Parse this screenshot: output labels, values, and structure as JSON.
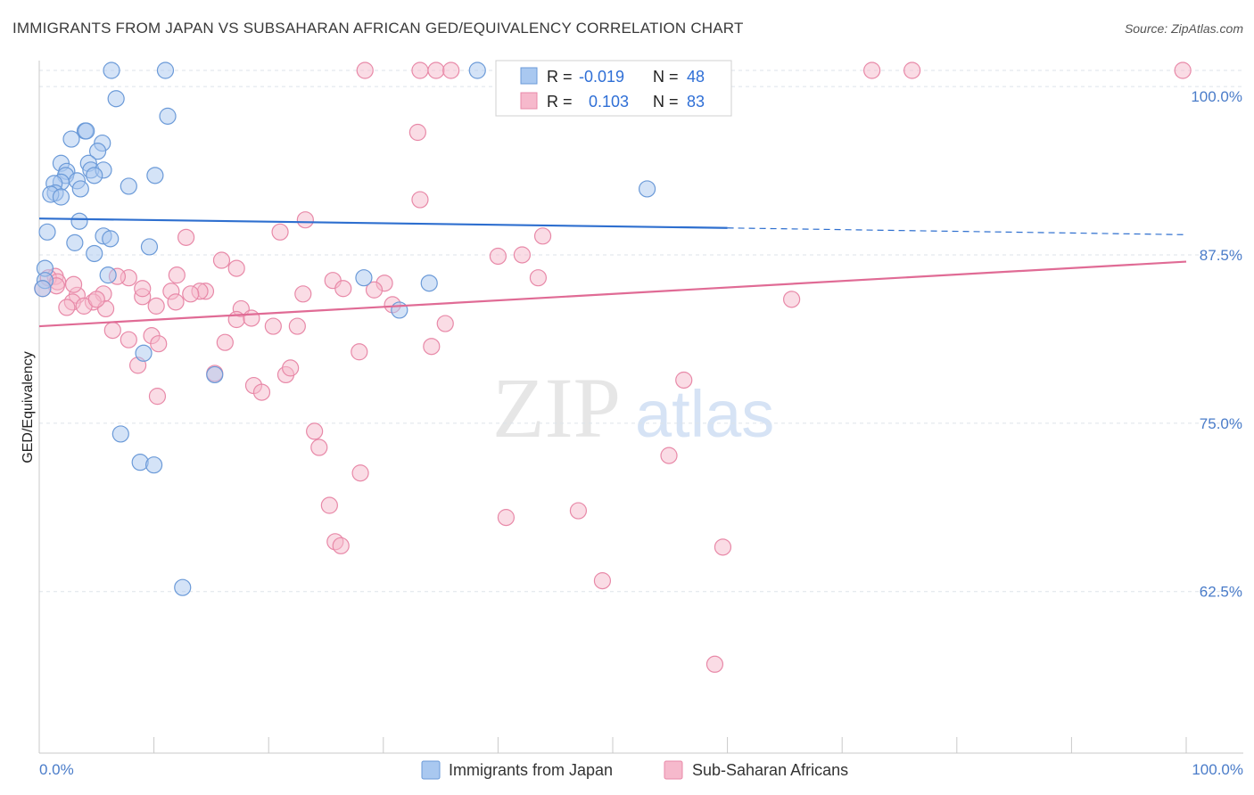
{
  "title": "IMMIGRANTS FROM JAPAN VS SUBSAHARAN AFRICAN GED/EQUIVALENCY CORRELATION CHART",
  "source": "Source: ZipAtlas.com",
  "watermark": {
    "zip": "ZIP",
    "atlas": "atlas"
  },
  "colors": {
    "japan_fill": "#a9c8f0",
    "japan_stroke": "#6b9ad8",
    "japan_line": "#2e6fcf",
    "africa_fill": "#f6b9cc",
    "africa_stroke": "#e889a8",
    "africa_line": "#e06b95",
    "tick_text": "#4a7cc9",
    "grid": "#dde3ea"
  },
  "stats": [
    {
      "r_label": "R =",
      "r_value": "-0.019",
      "n_label": "N =",
      "n_value": "48"
    },
    {
      "r_label": "R =",
      "r_value": "0.103",
      "n_label": "N =",
      "n_value": "83"
    }
  ],
  "chart_data": {
    "type": "scatter",
    "title": "IMMIGRANTS FROM JAPAN VS SUBSAHARAN AFRICAN GED/EQUIVALENCY CORRELATION CHART",
    "xlabel": "",
    "ylabel": "GED/Equivalency",
    "x_tick_labels": [
      "0.0%",
      "100.0%"
    ],
    "y_tick_labels": [
      "100.0%",
      "87.5%",
      "75.0%",
      "62.5%"
    ],
    "xlim": [
      0,
      100
    ],
    "ylim": [
      50.5,
      101.2
    ],
    "y_ticks": [
      100,
      87.5,
      75,
      62.5
    ],
    "grid": true,
    "legend_position": "bottom-center",
    "series": [
      {
        "name": "Immigrants from Japan",
        "r": -0.019,
        "n": 48,
        "trend": {
          "x0": 0,
          "y0": 90.2,
          "x1": 60,
          "y1": 89.5,
          "x_dash_end": 100,
          "y_dash_end": 89.0
        },
        "points": [
          [
            6.3,
            101.2
          ],
          [
            11,
            101.2
          ],
          [
            38.2,
            101.2
          ],
          [
            43,
            101.2
          ],
          [
            6.7,
            99.1
          ],
          [
            11.2,
            97.8
          ],
          [
            4.0,
            96.7
          ],
          [
            4.1,
            96.7
          ],
          [
            2.8,
            96.1
          ],
          [
            5.5,
            95.8
          ],
          [
            5.1,
            95.2
          ],
          [
            1.9,
            94.3
          ],
          [
            4.3,
            94.3
          ],
          [
            4.5,
            93.8
          ],
          [
            5.6,
            93.8
          ],
          [
            2.4,
            93.7
          ],
          [
            2.3,
            93.4
          ],
          [
            4.8,
            93.4
          ],
          [
            10.1,
            93.4
          ],
          [
            3.3,
            93.0
          ],
          [
            1.9,
            92.9
          ],
          [
            1.3,
            92.8
          ],
          [
            7.8,
            92.6
          ],
          [
            3.6,
            92.4
          ],
          [
            1.4,
            92.1
          ],
          [
            1.0,
            92.0
          ],
          [
            1.9,
            91.8
          ],
          [
            53,
            92.4
          ],
          [
            3.5,
            90.0
          ],
          [
            0.7,
            89.2
          ],
          [
            5.6,
            88.9
          ],
          [
            6.2,
            88.7
          ],
          [
            3.1,
            88.4
          ],
          [
            9.6,
            88.1
          ],
          [
            4.8,
            87.6
          ],
          [
            0.5,
            86.5
          ],
          [
            6.0,
            86.0
          ],
          [
            0.5,
            85.6
          ],
          [
            28.3,
            85.8
          ],
          [
            34,
            85.4
          ],
          [
            31.4,
            83.4
          ],
          [
            9.1,
            80.2
          ],
          [
            15.3,
            78.6
          ],
          [
            7.1,
            74.2
          ],
          [
            8.8,
            72.1
          ],
          [
            10.0,
            71.9
          ],
          [
            12.5,
            62.8
          ],
          [
            0.3,
            85.0
          ]
        ]
      },
      {
        "name": "Sub-Saharan Africans",
        "r": 0.103,
        "n": 83,
        "trend": {
          "x0": 0,
          "y0": 82.2,
          "x1": 100,
          "y1": 87.0
        },
        "points": [
          [
            28.4,
            101.2
          ],
          [
            33.2,
            101.2
          ],
          [
            34.6,
            101.2
          ],
          [
            35.9,
            101.2
          ],
          [
            72.6,
            101.2
          ],
          [
            76.1,
            101.2
          ],
          [
            99.7,
            101.2
          ],
          [
            33,
            96.6
          ],
          [
            33.2,
            91.6
          ],
          [
            23.2,
            90.1
          ],
          [
            21,
            89.2
          ],
          [
            43.9,
            88.9
          ],
          [
            12.8,
            88.8
          ],
          [
            40,
            87.4
          ],
          [
            42.1,
            87.5
          ],
          [
            15.9,
            87.1
          ],
          [
            17.2,
            86.5
          ],
          [
            43.5,
            85.8
          ],
          [
            1.4,
            85.9
          ],
          [
            7.8,
            85.8
          ],
          [
            6.8,
            85.9
          ],
          [
            0.8,
            85.8
          ],
          [
            1.6,
            85.5
          ],
          [
            25.6,
            85.6
          ],
          [
            30.1,
            85.4
          ],
          [
            1.5,
            85.2
          ],
          [
            0.3,
            85.0
          ],
          [
            11.5,
            84.8
          ],
          [
            14.5,
            84.8
          ],
          [
            14.0,
            84.8
          ],
          [
            13.2,
            84.6
          ],
          [
            5.6,
            84.6
          ],
          [
            3.3,
            84.5
          ],
          [
            9.0,
            84.4
          ],
          [
            23.0,
            84.6
          ],
          [
            29.2,
            84.9
          ],
          [
            65.6,
            84.2
          ],
          [
            11.9,
            84.0
          ],
          [
            2.9,
            84.0
          ],
          [
            4.7,
            84.0
          ],
          [
            10.2,
            83.7
          ],
          [
            2.4,
            83.6
          ],
          [
            3.9,
            83.7
          ],
          [
            5.8,
            83.5
          ],
          [
            17.6,
            83.5
          ],
          [
            30.8,
            83.8
          ],
          [
            17.2,
            82.7
          ],
          [
            18.5,
            82.8
          ],
          [
            35.4,
            82.4
          ],
          [
            20.4,
            82.2
          ],
          [
            22.5,
            82.2
          ],
          [
            6.4,
            81.9
          ],
          [
            9.8,
            81.5
          ],
          [
            7.8,
            81.2
          ],
          [
            10.4,
            80.9
          ],
          [
            16.2,
            81.0
          ],
          [
            34.2,
            80.7
          ],
          [
            27.9,
            80.3
          ],
          [
            8.6,
            79.3
          ],
          [
            21.5,
            78.6
          ],
          [
            15.3,
            78.7
          ],
          [
            21.9,
            79.1
          ],
          [
            56.2,
            78.2
          ],
          [
            18.7,
            77.8
          ],
          [
            19.4,
            77.3
          ],
          [
            10.3,
            77.0
          ],
          [
            24.0,
            74.4
          ],
          [
            24.4,
            73.2
          ],
          [
            54.9,
            72.6
          ],
          [
            28,
            71.3
          ],
          [
            25.3,
            68.9
          ],
          [
            40.7,
            68.0
          ],
          [
            47.0,
            68.5
          ],
          [
            25.8,
            66.2
          ],
          [
            26.3,
            65.9
          ],
          [
            59.6,
            65.8
          ],
          [
            49.1,
            63.3
          ],
          [
            58.9,
            57.1
          ],
          [
            3.0,
            85.3
          ],
          [
            5.0,
            84.2
          ],
          [
            12.0,
            86.0
          ],
          [
            9.0,
            85.0
          ],
          [
            26.5,
            85.0
          ]
        ]
      }
    ]
  },
  "legend": [
    {
      "label": "Immigrants from Japan"
    },
    {
      "label": "Sub-Saharan Africans"
    }
  ]
}
